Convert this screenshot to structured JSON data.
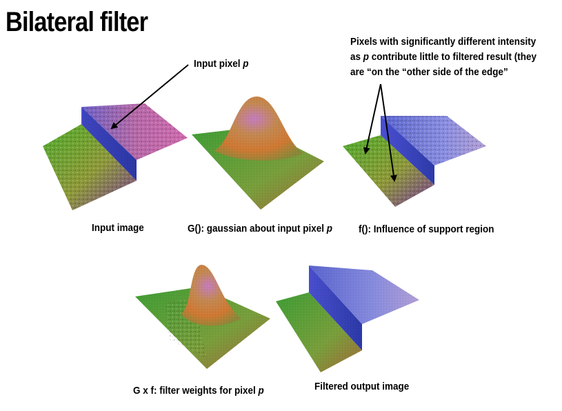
{
  "slide": {
    "title": "Bilateral filter",
    "callout_input_pixel": {
      "text": "Input pixel ",
      "var": "p"
    },
    "callout_note": {
      "line1": "Pixels with significantly different intensity",
      "line2_pre": "as ",
      "line2_var": "p",
      "line2_post": " contribute little to filtered result (they",
      "line3": "are “on the “other side of the edge”"
    },
    "captions": {
      "input_image": "Input image",
      "gaussian_pre": "G(): gaussian about input pixel ",
      "gaussian_var": "p",
      "influence": "f(): Influence of support region",
      "weights_pre": "G x f: filter weights for pixel ",
      "weights_var": "p",
      "output": "Filtered output image"
    }
  }
}
